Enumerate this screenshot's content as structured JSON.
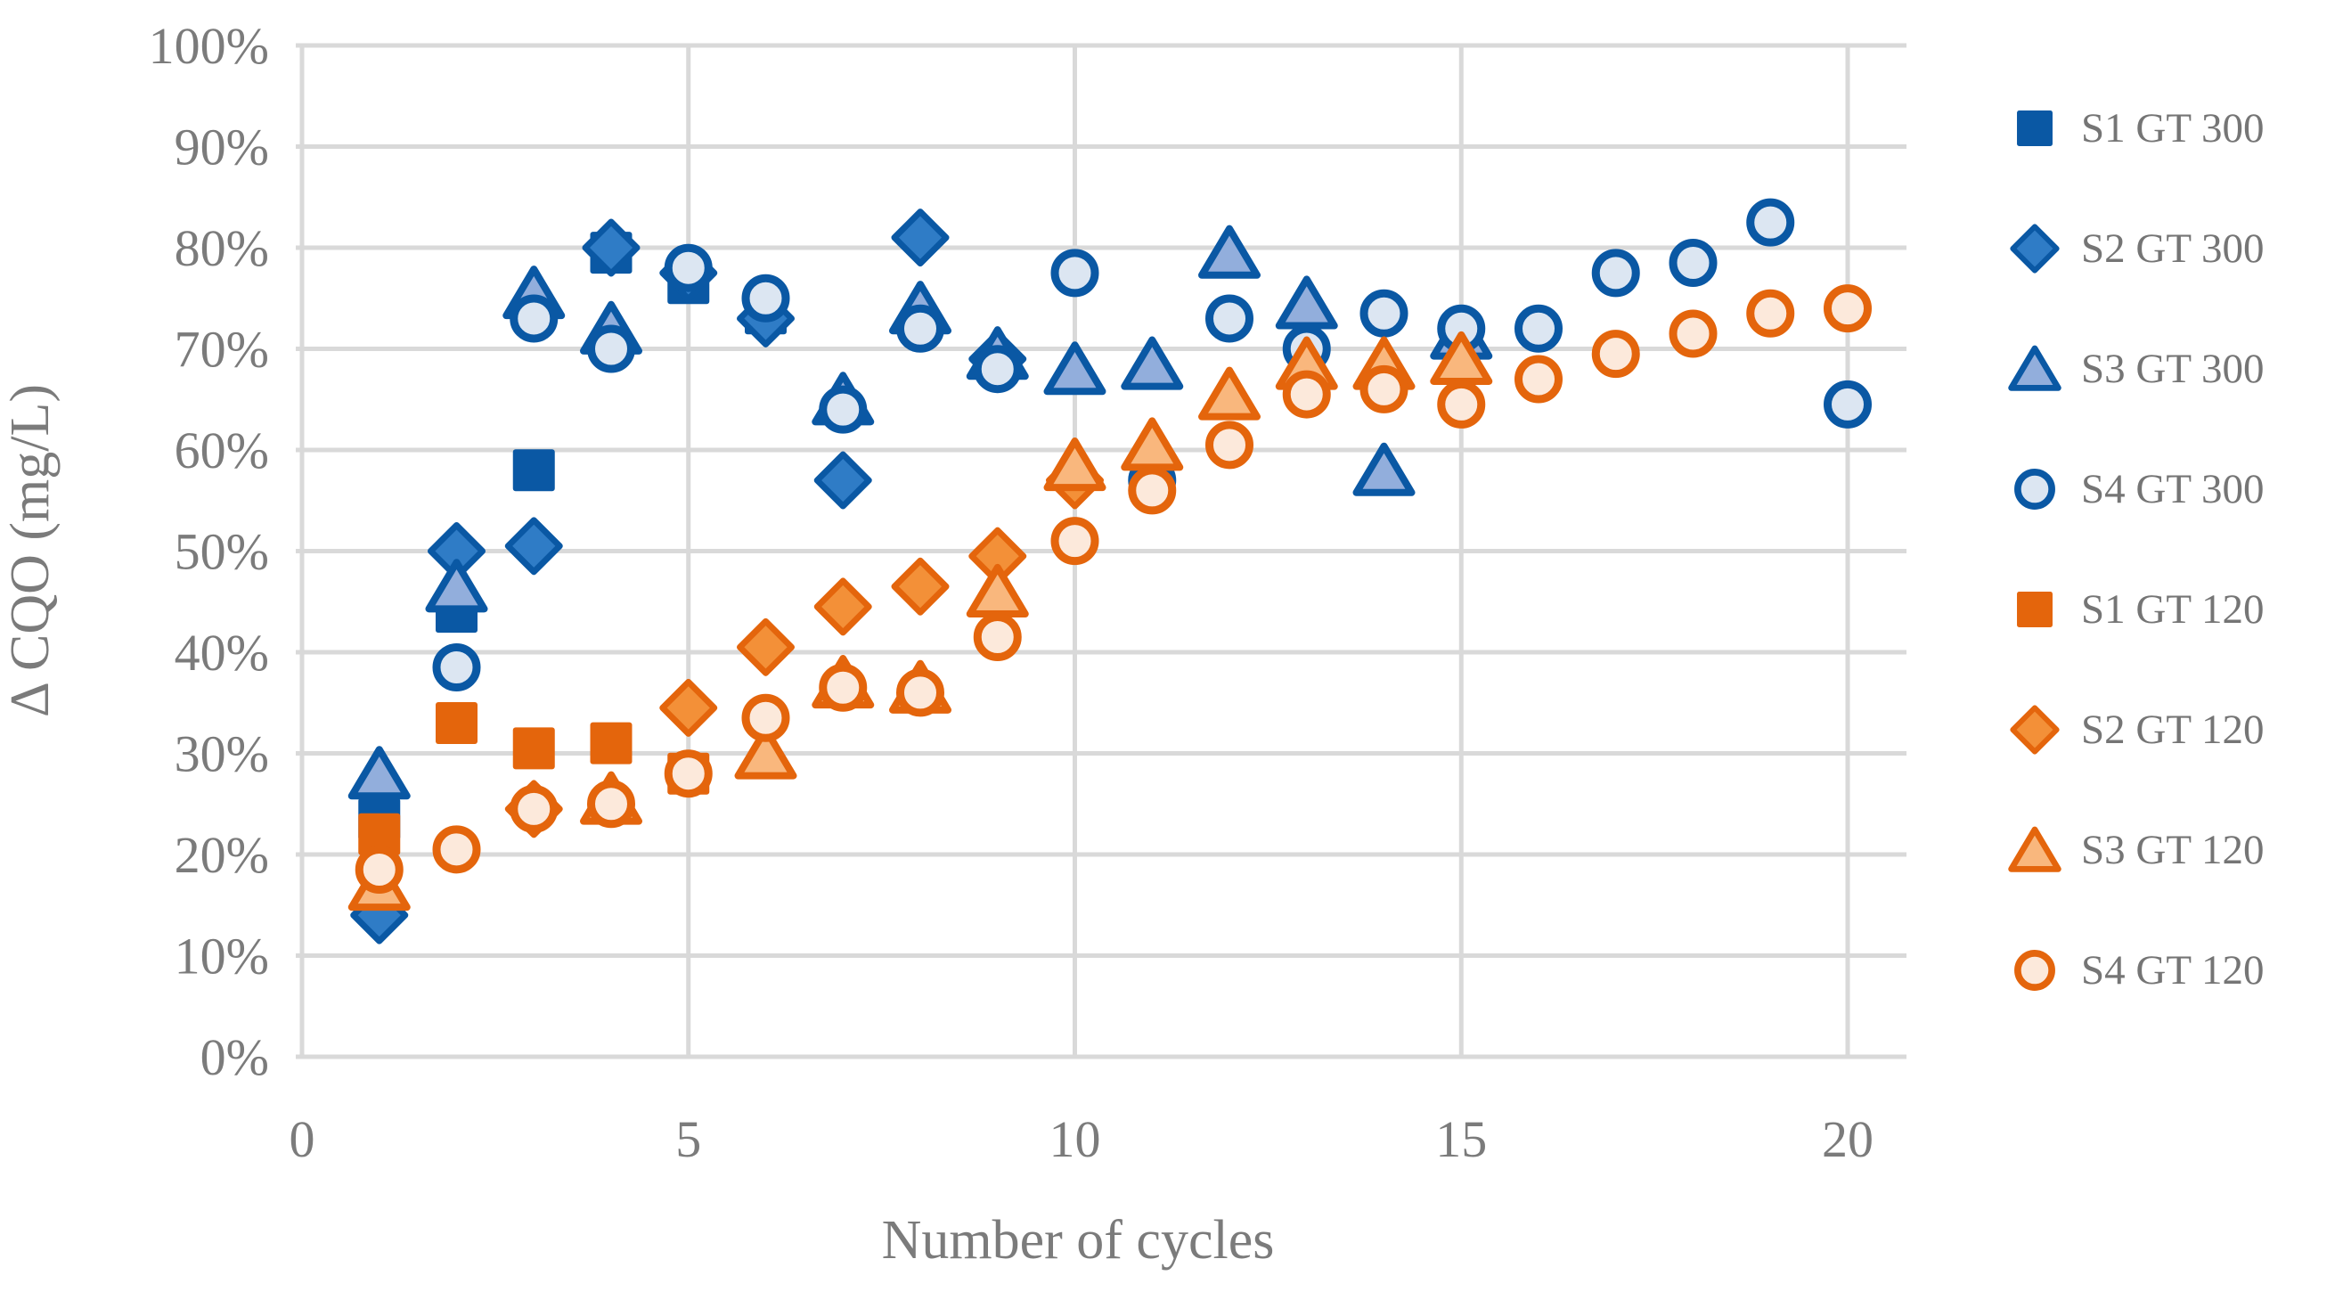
{
  "chart_data": {
    "type": "scatter",
    "title": "",
    "xlabel": "Number of cycles",
    "ylabel": "Δ CQO (mg/L)",
    "xlim": [
      0,
      20.8
    ],
    "ylim": [
      0,
      100
    ],
    "x_ticks": [
      0,
      5,
      10,
      15,
      20
    ],
    "y_ticks": [
      {
        "value": 0,
        "label": "0%"
      },
      {
        "value": 10,
        "label": "10%"
      },
      {
        "value": 20,
        "label": "20%"
      },
      {
        "value": 30,
        "label": "30%"
      },
      {
        "value": 40,
        "label": "40%"
      },
      {
        "value": 50,
        "label": "50%"
      },
      {
        "value": 60,
        "label": "60%"
      },
      {
        "value": 70,
        "label": "70%"
      },
      {
        "value": 80,
        "label": "80%"
      },
      {
        "value": 90,
        "label": "90%"
      },
      {
        "value": 100,
        "label": "100%"
      }
    ],
    "grid": true,
    "legend_position": "right",
    "colors": {
      "grid": "#d9d9d9",
      "axis_text": "#7b7b7b",
      "legend_text": "#757575",
      "blue_dark": "#0a58a4",
      "blue_medium": "#2f7cc6",
      "blue_light": "#92aedc",
      "blue_pale": "#dce6f2",
      "orange_dark": "#e4650c",
      "orange_medium": "#f39038",
      "orange_light": "#f9b77d",
      "orange_pale": "#fce9db"
    },
    "series": [
      {
        "name": "S1 GT 300",
        "shape": "square",
        "fill": "#0a58a4",
        "stroke": "#0a58a4",
        "points": [
          [
            1,
            23.5
          ],
          [
            2,
            44
          ],
          [
            3,
            58
          ],
          [
            4,
            79.5
          ],
          [
            5,
            76.5
          ],
          [
            6,
            73.5
          ]
        ]
      },
      {
        "name": "S2 GT 300",
        "shape": "diamond",
        "fill": "#2f7cc6",
        "stroke": "#0a58a4",
        "points": [
          [
            1,
            14
          ],
          [
            2,
            50
          ],
          [
            3,
            50.5
          ],
          [
            4,
            80
          ],
          [
            5,
            77.5
          ],
          [
            6,
            73
          ],
          [
            7,
            57
          ],
          [
            8,
            81
          ],
          [
            9,
            69
          ]
        ]
      },
      {
        "name": "S3 GT 300",
        "shape": "triangle",
        "fill": "#92aedc",
        "stroke": "#0a58a4",
        "points": [
          [
            1,
            28
          ],
          [
            2,
            46.5
          ],
          [
            3,
            75.5
          ],
          [
            4,
            72
          ],
          [
            7,
            65
          ],
          [
            8,
            74
          ],
          [
            9,
            69.5
          ],
          [
            10,
            68
          ],
          [
            11,
            68.5
          ],
          [
            12,
            79.5
          ],
          [
            13,
            74.5
          ],
          [
            14,
            58
          ],
          [
            15,
            71.5
          ]
        ]
      },
      {
        "name": "S4 GT 300",
        "shape": "circle",
        "fill": "#dce6f2",
        "stroke": "#0a58a4",
        "points": [
          [
            2,
            38.5
          ],
          [
            3,
            73
          ],
          [
            4,
            70
          ],
          [
            5,
            78
          ],
          [
            6,
            75
          ],
          [
            7,
            64
          ],
          [
            8,
            72
          ],
          [
            9,
            68
          ],
          [
            10,
            77.5
          ],
          [
            11,
            57
          ],
          [
            12,
            73
          ],
          [
            13,
            70
          ],
          [
            14,
            73.5
          ],
          [
            15,
            72
          ],
          [
            16,
            72
          ],
          [
            17,
            77.5
          ],
          [
            18,
            78.5
          ],
          [
            19,
            82.5
          ],
          [
            20,
            64.5
          ]
        ]
      },
      {
        "name": "S1 GT 120",
        "shape": "square",
        "fill": "#e4650c",
        "stroke": "#e4650c",
        "points": [
          [
            1,
            22
          ],
          [
            2,
            33
          ],
          [
            3,
            30.5
          ],
          [
            4,
            31
          ],
          [
            5,
            28
          ]
        ]
      },
      {
        "name": "S2 GT 120",
        "shape": "diamond",
        "fill": "#f39038",
        "stroke": "#e4650c",
        "points": [
          [
            3,
            24.5
          ],
          [
            5,
            34.5
          ],
          [
            6,
            40.5
          ],
          [
            7,
            44.5
          ],
          [
            8,
            46.5
          ],
          [
            9,
            49.5
          ],
          [
            10,
            57
          ]
        ]
      },
      {
        "name": "S3 GT 120",
        "shape": "triangle",
        "fill": "#f9b77d",
        "stroke": "#e4650c",
        "points": [
          [
            1,
            17
          ],
          [
            4,
            25.5
          ],
          [
            6,
            30
          ],
          [
            7,
            37
          ],
          [
            8,
            36.5
          ],
          [
            9,
            46
          ],
          [
            10,
            58.5
          ],
          [
            11,
            60.5
          ],
          [
            12,
            65.5
          ],
          [
            13,
            68.5
          ],
          [
            14,
            68.5
          ],
          [
            15,
            69
          ]
        ]
      },
      {
        "name": "S4 GT 120",
        "shape": "circle",
        "fill": "#fce9db",
        "stroke": "#e4650c",
        "points": [
          [
            1,
            18.5
          ],
          [
            2,
            20.5
          ],
          [
            3,
            24.5
          ],
          [
            4,
            25
          ],
          [
            5,
            28
          ],
          [
            6,
            33.5
          ],
          [
            7,
            36.5
          ],
          [
            8,
            36
          ],
          [
            9,
            41.5
          ],
          [
            10,
            51
          ],
          [
            11,
            56
          ],
          [
            12,
            60.5
          ],
          [
            13,
            65.5
          ],
          [
            14,
            66
          ],
          [
            15,
            64.5
          ],
          [
            16,
            67
          ],
          [
            17,
            69.5
          ],
          [
            18,
            71.5
          ],
          [
            19,
            73.5
          ],
          [
            20,
            74
          ]
        ]
      }
    ]
  }
}
